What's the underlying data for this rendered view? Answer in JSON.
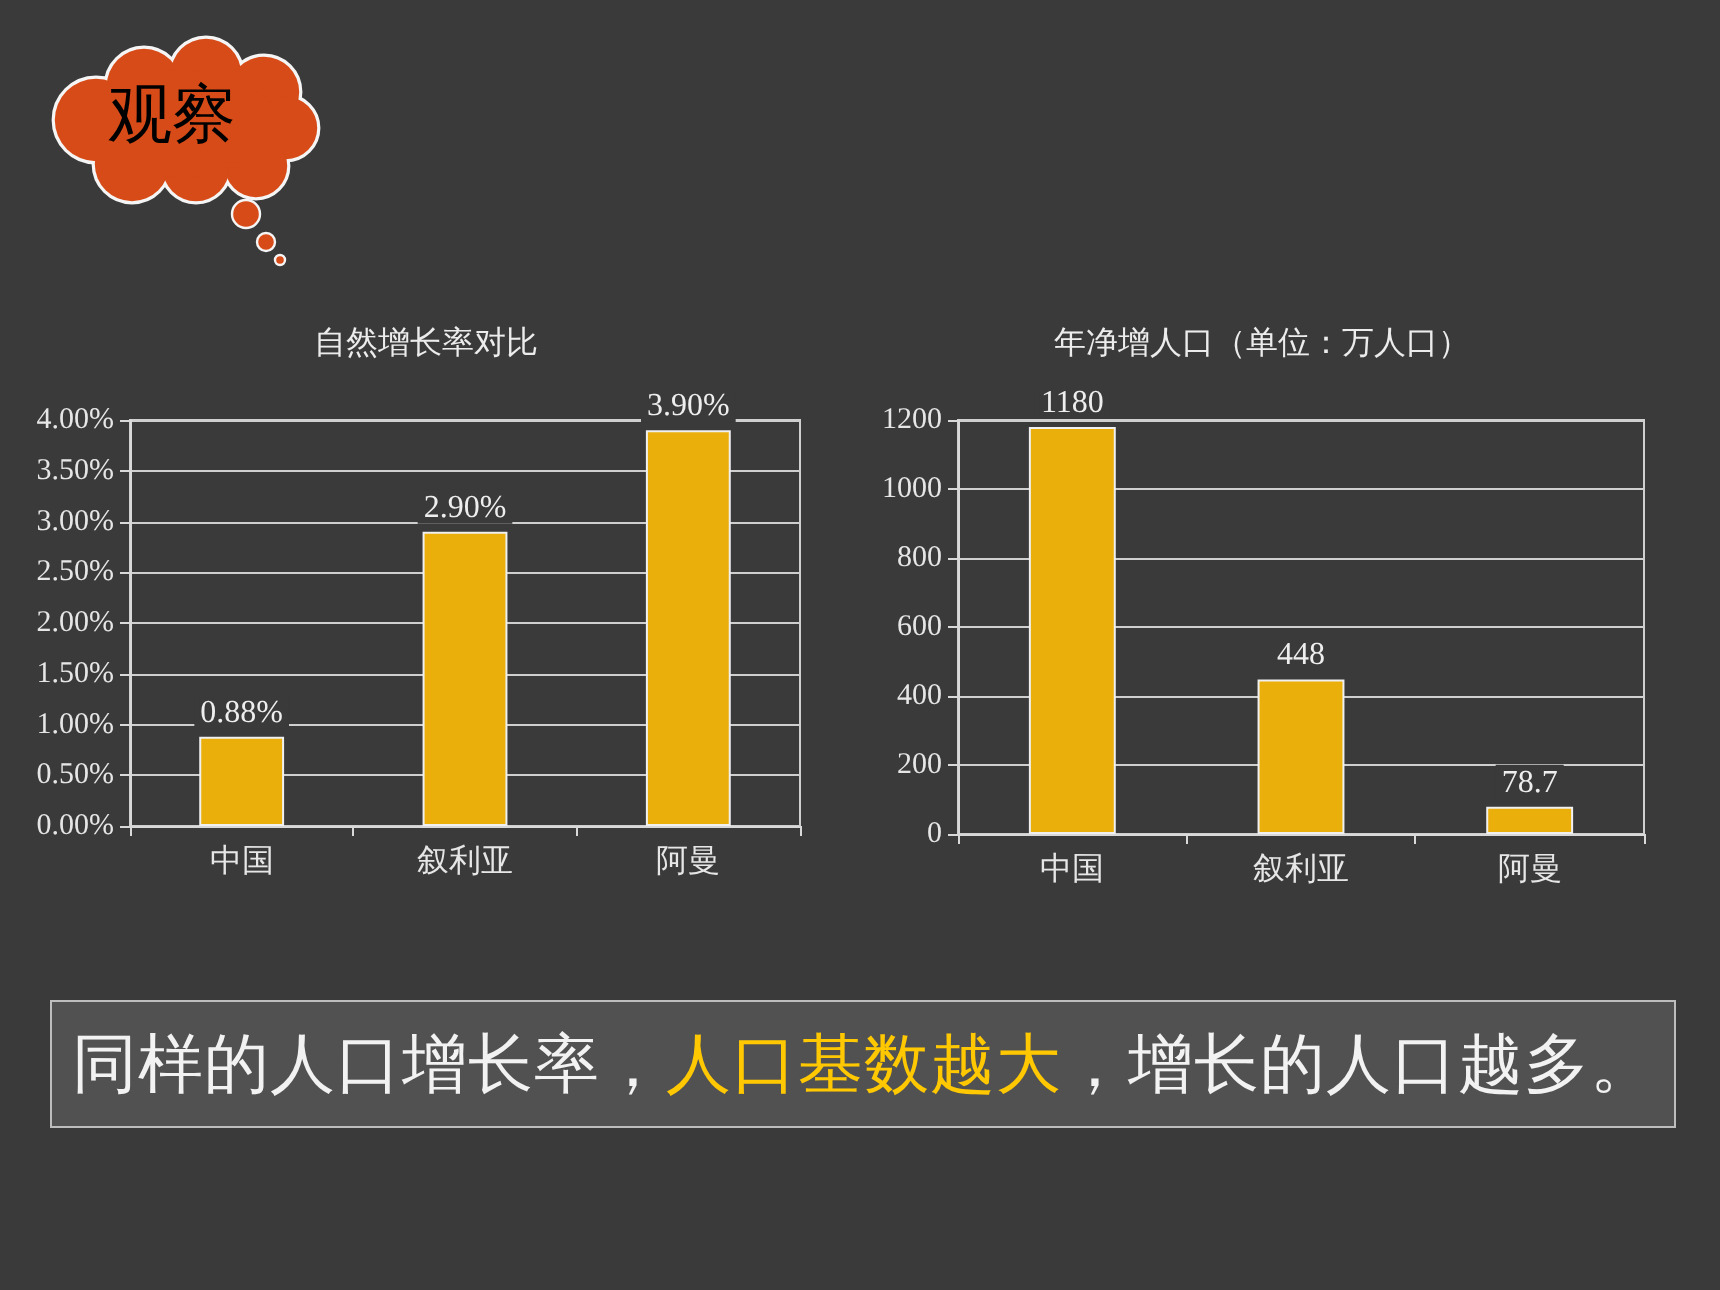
{
  "chart_data": [
    {
      "type": "bar",
      "title": "自然增长率对比",
      "categories": [
        "中国",
        "叙利亚",
        "阿曼"
      ],
      "values": [
        0.88,
        2.9,
        3.9
      ],
      "value_labels": [
        "0.88%",
        "2.90%",
        "3.90%"
      ],
      "color": "#ebaf0c",
      "ylim": [
        0,
        4
      ],
      "yticks": [
        {
          "value": 0,
          "label": "0.00%"
        },
        {
          "value": 0.5,
          "label": "0.50%"
        },
        {
          "value": 1,
          "label": "1.00%"
        },
        {
          "value": 1.5,
          "label": "1.50%"
        },
        {
          "value": 2,
          "label": "2.00%"
        },
        {
          "value": 2.5,
          "label": "2.50%"
        },
        {
          "value": 3,
          "label": "3.00%"
        },
        {
          "value": 3.5,
          "label": "3.50%"
        },
        {
          "value": 4,
          "label": "4.00%"
        }
      ],
      "grid": "y",
      "annotations": [
        "观察"
      ]
    },
    {
      "type": "bar",
      "title": "年净增人口（单位：万人口）",
      "categories": [
        "中国",
        "叙利亚",
        "阿曼"
      ],
      "values": [
        1180,
        448,
        78.7
      ],
      "data_labels": true,
      "color": "#ebaf0c",
      "ylim": [
        0,
        1200
      ],
      "yticks": [
        0,
        200,
        400,
        600,
        800,
        1000,
        1200
      ],
      "grid": "y",
      "annotations": [
        "同样的人口增长率，",
        "人口基数越大",
        "，增长的人口越多。"
      ]
    }
  ]
}
